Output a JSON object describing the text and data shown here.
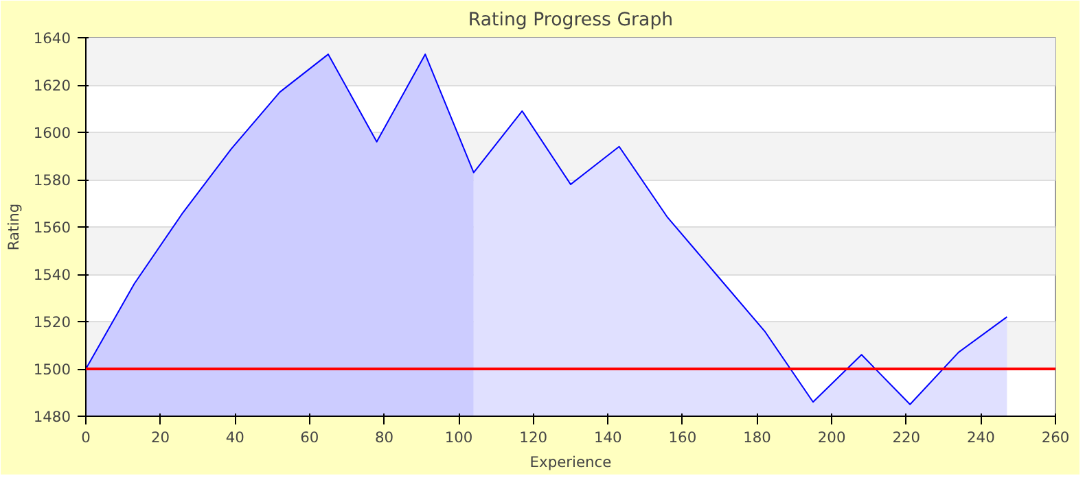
{
  "chart_data": {
    "type": "line",
    "title": "Rating Progress Graph",
    "xlabel": "Experience",
    "ylabel": "Rating",
    "xlim": [
      0,
      260
    ],
    "xticks": [
      0,
      20,
      40,
      60,
      80,
      100,
      120,
      140,
      160,
      180,
      200,
      220,
      240,
      260
    ],
    "ylim": [
      1480,
      1640
    ],
    "yticks": [
      1480,
      1500,
      1520,
      1540,
      1560,
      1580,
      1600,
      1620,
      1640
    ],
    "grid": "y",
    "series": [
      {
        "type": "area",
        "color": "#ccccff",
        "x": [
          0,
          13,
          26,
          39,
          52,
          65,
          78,
          91,
          104
        ],
        "values": [
          1500,
          1536,
          1566,
          1593,
          1617,
          1633,
          1596,
          1633,
          1583
        ]
      },
      {
        "type": "area",
        "color": "#e0e0ff",
        "x": [
          104,
          117,
          130,
          143,
          156,
          169,
          182,
          195,
          208,
          221,
          234,
          247
        ],
        "values": [
          1583,
          1609,
          1578,
          1594,
          1564,
          1540,
          1516,
          1486,
          1506,
          1485,
          1507,
          1522
        ]
      },
      {
        "color": "#0000ff",
        "x": [
          0,
          13,
          26,
          39,
          52,
          65,
          78,
          91,
          104,
          117,
          130,
          143,
          156,
          169,
          182,
          195,
          208,
          221,
          234,
          247
        ],
        "values": [
          1500,
          1536,
          1566,
          1593,
          1617,
          1633,
          1596,
          1633,
          1583,
          1609,
          1578,
          1594,
          1564,
          1540,
          1516,
          1486,
          1506,
          1485,
          1507,
          1522
        ]
      }
    ],
    "ref_lines": [
      {
        "axis": "y",
        "value": 1500,
        "color": "#ff0000"
      }
    ]
  }
}
